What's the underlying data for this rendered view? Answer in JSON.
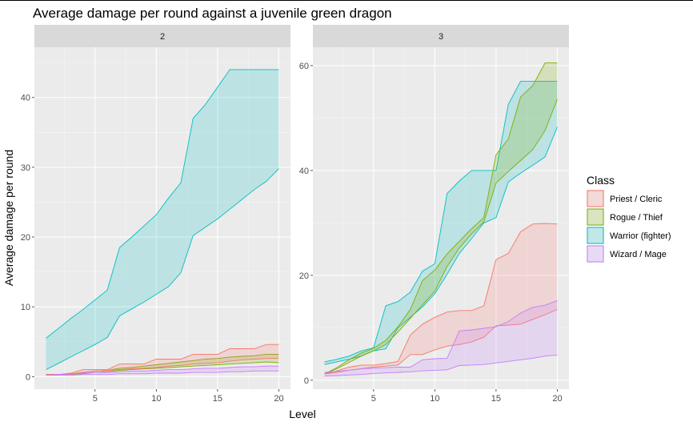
{
  "chart_data": {
    "type": "area",
    "title": "Average damage per round against a juvenile green dragon",
    "xlabel": "Level",
    "ylabel": "Average damage per round",
    "legend_title": "Class",
    "legend_position": "right",
    "grid": true,
    "series": [
      {
        "name": "Priest / Cleric",
        "color": "#F8766D"
      },
      {
        "name": "Rogue / Thief",
        "color": "#7CAE00"
      },
      {
        "name": "Warrior (fighter)",
        "color": "#00BFC4"
      },
      {
        "name": "Wizard / Mage",
        "color": "#C77CFF"
      }
    ],
    "x": [
      1,
      2,
      3,
      4,
      5,
      6,
      7,
      8,
      9,
      10,
      11,
      12,
      13,
      14,
      15,
      16,
      17,
      18,
      19,
      20
    ],
    "xlim": [
      0.05,
      20.95
    ],
    "x_ticks": [
      5,
      10,
      15,
      20
    ],
    "panels": [
      {
        "label": "2",
        "ylim": [
          -1.8,
          47.2
        ],
        "y_ticks": [
          0,
          10,
          20,
          30,
          40
        ],
        "ribbons": {
          "Priest / Cleric": {
            "low": [
              0.3,
              0.3,
              0.3,
              0.6,
              0.8,
              0.9,
              1.0,
              1.1,
              1.2,
              1.3,
              1.5,
              1.6,
              1.8,
              1.9,
              2.0,
              2.2,
              2.4,
              2.5,
              2.6,
              2.6
            ],
            "high": [
              0.3,
              0.3,
              0.5,
              1.0,
              1.0,
              1.0,
              1.8,
              1.8,
              1.8,
              2.5,
              2.5,
              2.5,
              3.2,
              3.2,
              3.2,
              4.0,
              4.0,
              4.0,
              4.6,
              4.6
            ]
          },
          "Rogue / Thief": {
            "low": [
              0.3,
              0.3,
              0.3,
              0.4,
              0.6,
              0.7,
              0.9,
              1.0,
              1.1,
              1.2,
              1.3,
              1.4,
              1.5,
              1.6,
              1.7,
              1.8,
              1.9,
              2.0,
              2.1,
              2.0
            ],
            "high": [
              0.3,
              0.3,
              0.4,
              0.6,
              0.8,
              0.9,
              1.2,
              1.3,
              1.5,
              1.7,
              1.9,
              2.1,
              2.3,
              2.5,
              2.6,
              2.8,
              2.9,
              3.0,
              3.2,
              3.2
            ]
          },
          "Warrior (fighter)": {
            "low": [
              1.0,
              1.9,
              2.8,
              3.7,
              4.6,
              5.6,
              8.7,
              9.7,
              10.7,
              11.8,
              12.9,
              14.9,
              20.2,
              21.4,
              22.6,
              24.0,
              25.4,
              26.8,
              28.0,
              29.8
            ],
            "high": [
              5.5,
              6.9,
              8.3,
              9.6,
              11.0,
              12.4,
              18.5,
              20.0,
              21.6,
              23.2,
              25.6,
              27.8,
              37.0,
              39.0,
              41.5,
              44.0,
              44.0,
              44.0,
              44.0,
              44.0
            ]
          },
          "Wizard / Mage": {
            "low": [
              0.2,
              0.2,
              0.2,
              0.3,
              0.3,
              0.3,
              0.4,
              0.4,
              0.4,
              0.5,
              0.5,
              0.5,
              0.6,
              0.6,
              0.6,
              0.7,
              0.7,
              0.8,
              0.8,
              0.8
            ],
            "high": [
              0.2,
              0.3,
              0.4,
              0.5,
              0.6,
              0.6,
              0.7,
              0.8,
              0.8,
              0.9,
              1.0,
              1.0,
              1.1,
              1.2,
              1.2,
              1.3,
              1.4,
              1.4,
              1.5,
              1.5
            ]
          }
        }
      },
      {
        "label": "3",
        "ylim": [
          -1.7,
          63.5
        ],
        "y_ticks": [
          0,
          20,
          40,
          60
        ],
        "ribbons": {
          "Priest / Cleric": {
            "low": [
              1.2,
              1.5,
              1.9,
              2.2,
              2.5,
              2.7,
              2.9,
              4.9,
              4.9,
              5.8,
              6.5,
              6.8,
              7.3,
              8.2,
              10.4,
              10.5,
              10.7,
              11.6,
              12.5,
              13.5
            ],
            "high": [
              1.2,
              1.8,
              2.5,
              2.9,
              2.9,
              3.2,
              3.6,
              8.6,
              10.7,
              12.0,
              13.0,
              13.3,
              13.3,
              14.2,
              23.0,
              24.2,
              28.3,
              29.8,
              29.9,
              29.8
            ]
          },
          "Rogue / Thief": {
            "low": [
              1.2,
              2.2,
              3.4,
              4.6,
              5.6,
              6.8,
              9.2,
              11.8,
              14.4,
              17.0,
              21.7,
              25.2,
              27.9,
              30.2,
              37.6,
              39.8,
              41.9,
              44.0,
              47.6,
              53.6
            ],
            "high": [
              1.2,
              2.4,
              3.9,
              5.2,
              6.1,
              7.6,
              10.2,
              13.5,
              19.0,
              21.0,
              24.1,
              26.5,
              28.9,
              31.0,
              43.0,
              46.0,
              54.0,
              56.2,
              60.5,
              60.5
            ]
          },
          "Warrior (fighter)": {
            "low": [
              3.0,
              3.5,
              4.0,
              4.6,
              5.6,
              6.0,
              10.0,
              12.0,
              14.0,
              16.5,
              20.2,
              24.2,
              27.0,
              30.0,
              31.0,
              37.8,
              39.5,
              41.0,
              42.6,
              48.3
            ],
            "high": [
              3.5,
              4.0,
              4.6,
              5.6,
              6.2,
              14.2,
              15.0,
              16.8,
              20.8,
              22.2,
              35.6,
              38.0,
              40.0,
              40.0,
              40.0,
              52.6,
              57.0,
              57.0,
              57.0,
              57.0
            ]
          },
          "Wizard / Mage": {
            "low": [
              0.8,
              0.9,
              1.0,
              1.1,
              1.3,
              1.4,
              1.5,
              1.6,
              1.8,
              1.9,
              2.0,
              2.8,
              2.9,
              3.0,
              3.3,
              3.6,
              3.9,
              4.2,
              4.6,
              4.8
            ],
            "high": [
              1.5,
              1.7,
              1.9,
              2.2,
              2.3,
              2.4,
              2.5,
              2.5,
              3.9,
              4.1,
              4.2,
              9.4,
              9.6,
              9.9,
              10.2,
              11.2,
              12.8,
              13.9,
              14.3,
              15.2
            ]
          }
        }
      }
    ]
  }
}
